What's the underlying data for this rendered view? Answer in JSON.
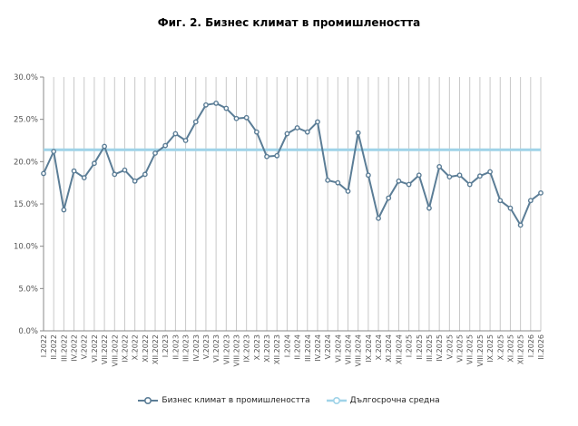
{
  "chart_data": {
    "type": "line",
    "title": "Фиг. 2. Бизнес климат в промишлеността",
    "xlabel": "",
    "ylabel": "",
    "ylim": [
      0,
      30
    ],
    "y_ticks": [
      "0.0%",
      "5.0%",
      "10.0%",
      "15.0%",
      "20.0%",
      "25.0%",
      "30.0%"
    ],
    "grid": true,
    "legend_position": "bottom",
    "x": [
      "I.2022",
      "II.2022",
      "III.2022",
      "IV.2022",
      "V.2022",
      "VI.2022",
      "VII.2022",
      "VIII.2022",
      "IX.2022",
      "X.2022",
      "XI.2022",
      "XII.2022",
      "I.2023",
      "II.2023",
      "III.2023",
      "IV.2023",
      "V.2023",
      "VI.2023",
      "VII.2023",
      "VIII.2023",
      "IX.2023",
      "X.2023",
      "XI.2023",
      "XII.2023",
      "I.2024",
      "II.2024",
      "III.2024",
      "IV.2024",
      "V.2024",
      "VI.2024",
      "VII.2024",
      "VIII.2024",
      "IX.2024",
      "X.2024",
      "XI.2024",
      "XII.2024",
      "I.2025",
      "II.2025",
      "III.2025",
      "IV.2025",
      "V.2025",
      "VI.2025",
      "VII.2025",
      "VIII.2025",
      "IX.2025",
      "X.2025",
      "XI.2025",
      "XII.2025",
      "I.2026",
      "II.2026"
    ],
    "series": [
      {
        "name": "Бизнес климат в промишлеността",
        "color": "#5b7d96",
        "values": [
          18.6,
          21.2,
          14.3,
          18.9,
          18.1,
          19.8,
          21.8,
          18.5,
          19.0,
          17.7,
          18.5,
          21.0,
          21.9,
          23.3,
          22.5,
          24.7,
          26.7,
          26.9,
          26.3,
          25.1,
          25.2,
          23.5,
          20.6,
          20.7,
          23.3,
          24.0,
          23.5,
          24.7,
          17.8,
          17.5,
          16.5,
          23.4,
          18.4,
          13.3,
          15.7,
          17.7,
          17.3,
          18.4,
          14.5,
          19.4,
          18.2,
          18.4,
          17.3,
          18.3,
          18.8,
          15.4,
          14.5,
          12.5,
          15.4,
          16.3
        ]
      },
      {
        "name": "Дългосрочна средна",
        "color": "#9fd3e8",
        "values": [
          21.4,
          21.4,
          21.4,
          21.4,
          21.4,
          21.4,
          21.4,
          21.4,
          21.4,
          21.4,
          21.4,
          21.4,
          21.4,
          21.4,
          21.4,
          21.4,
          21.4,
          21.4,
          21.4,
          21.4,
          21.4,
          21.4,
          21.4,
          21.4,
          21.4,
          21.4,
          21.4,
          21.4,
          21.4,
          21.4,
          21.4,
          21.4,
          21.4,
          21.4,
          21.4,
          21.4,
          21.4,
          21.4,
          21.4,
          21.4,
          21.4,
          21.4,
          21.4,
          21.4,
          21.4,
          21.4,
          21.4,
          21.4,
          21.4,
          21.4
        ]
      }
    ]
  }
}
